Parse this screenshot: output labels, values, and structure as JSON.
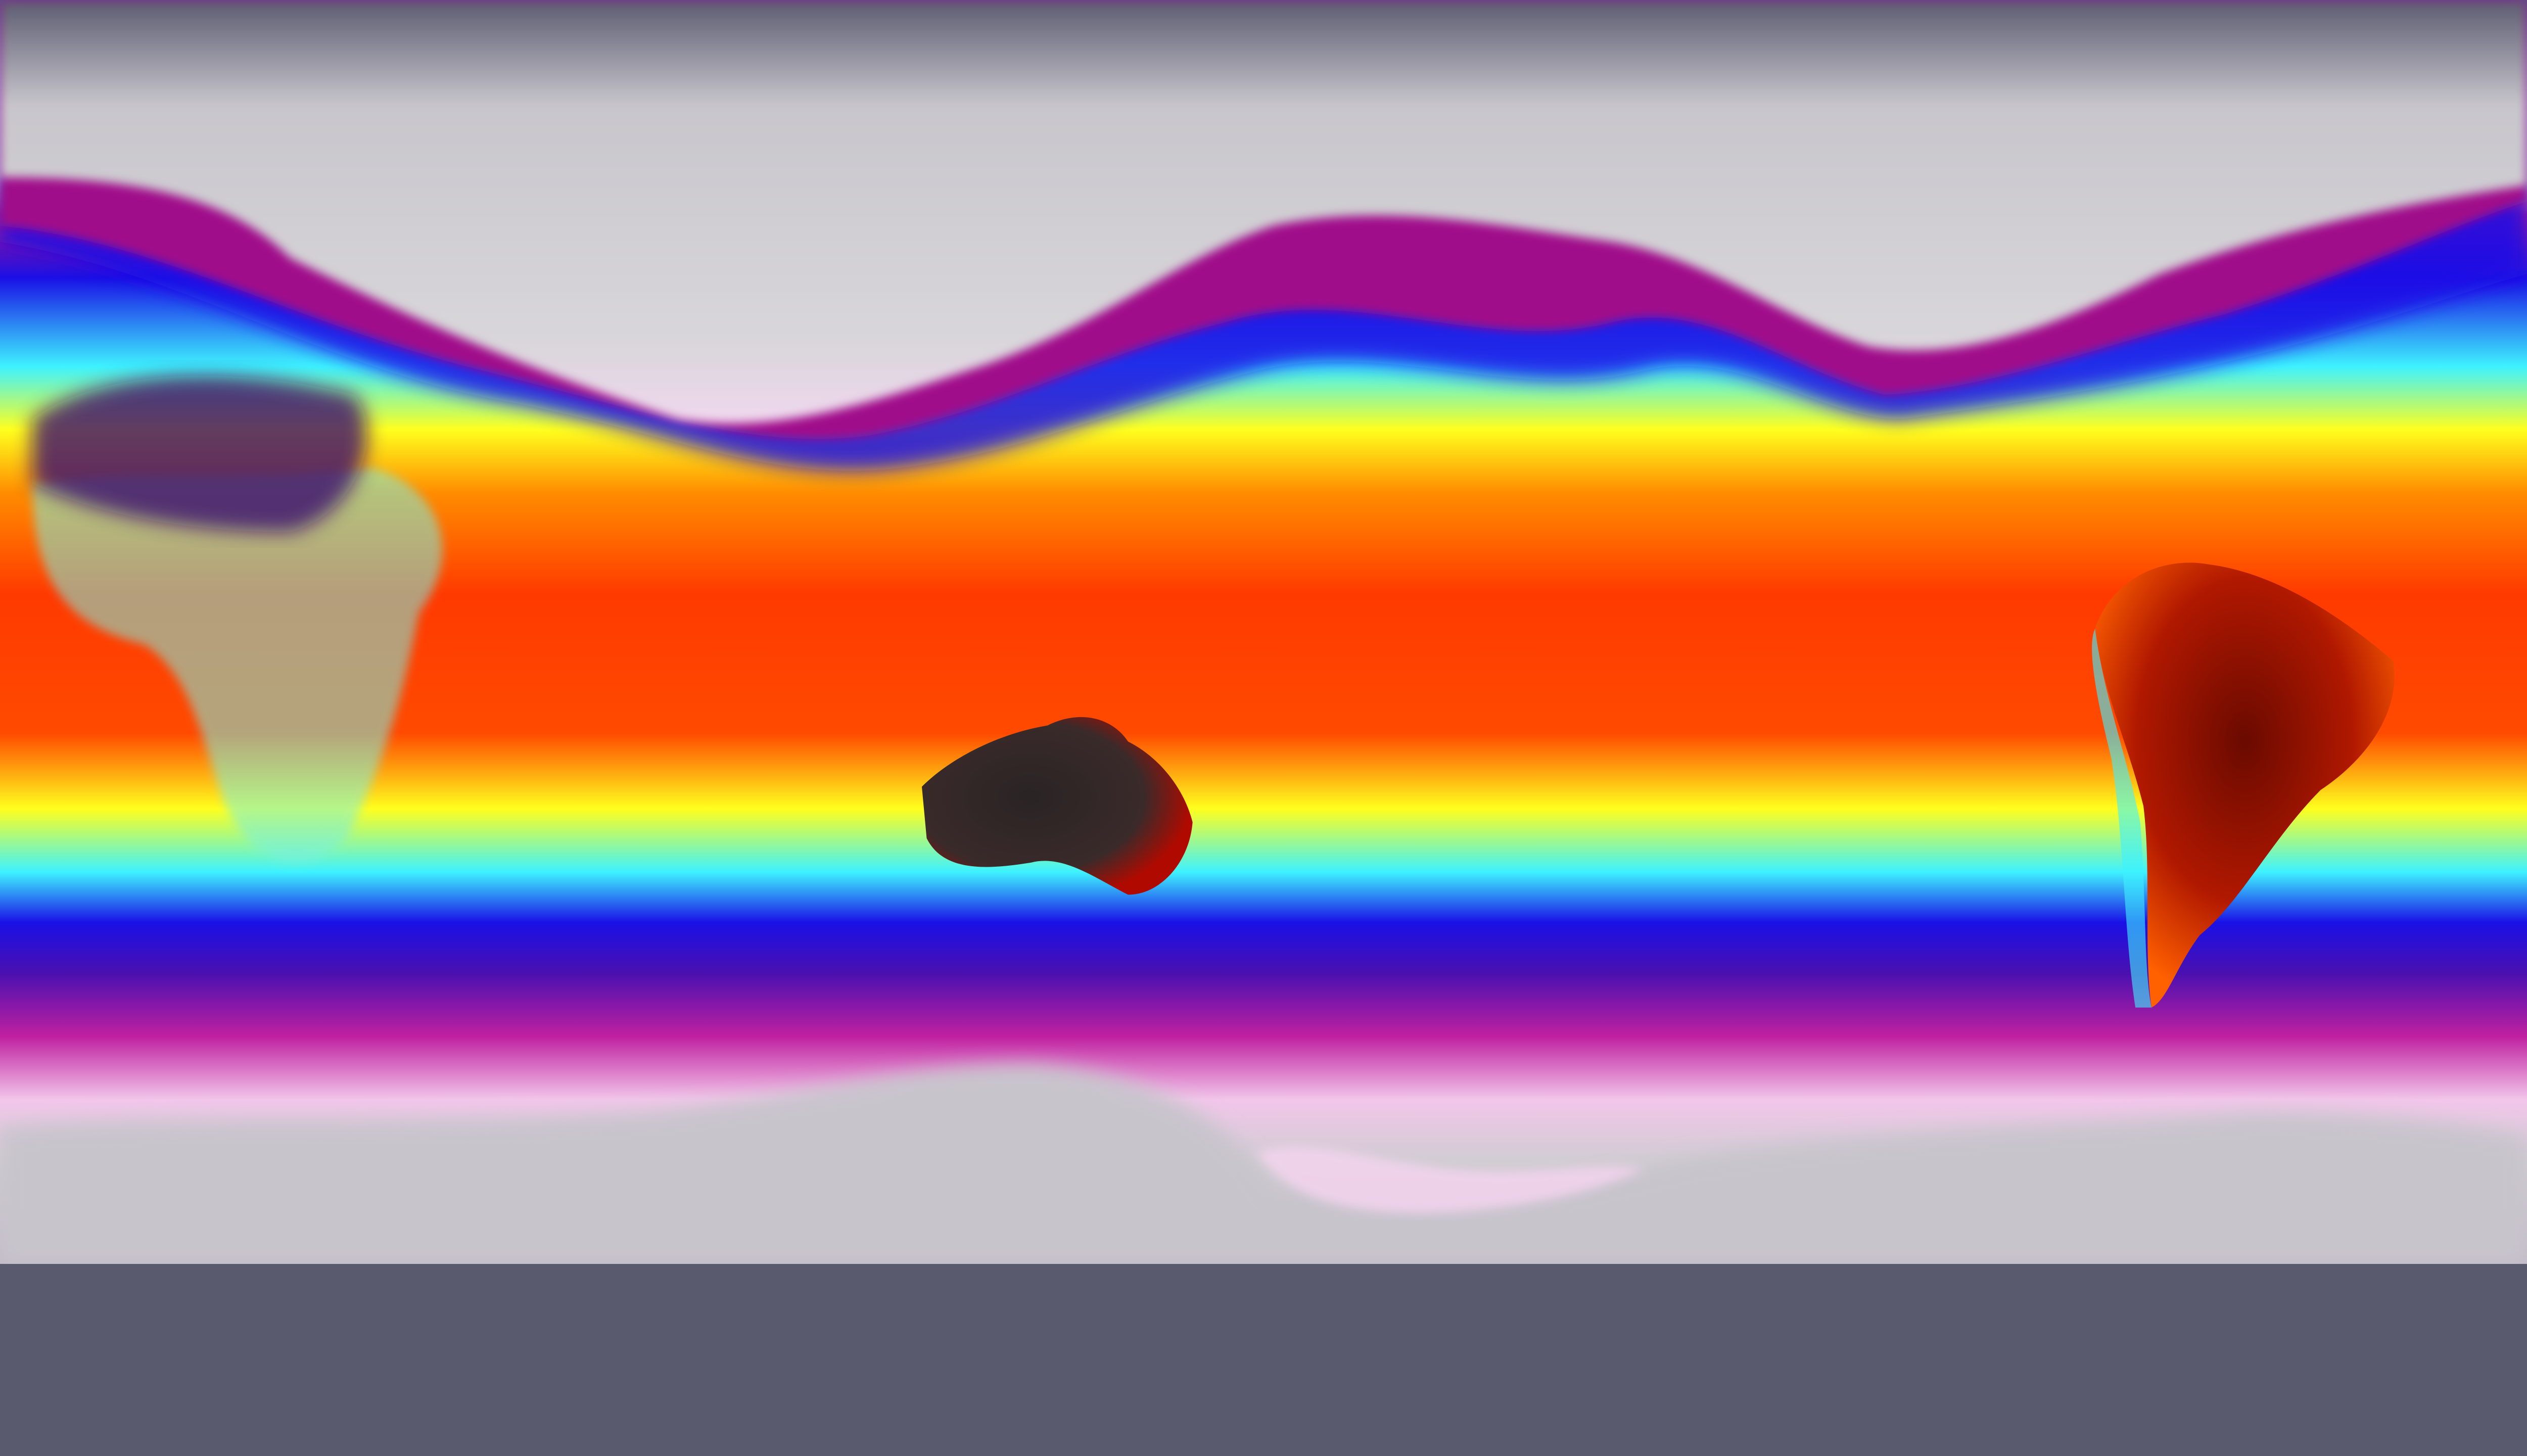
{
  "map": {
    "projection": "equirectangular",
    "colormap": {
      "polar_top": "#5c5b70",
      "cold_gray": "#d4d2d6",
      "cold_pink": "#f2c6ea",
      "magenta": "#b0148c",
      "blue": "#1a10e6",
      "cyan": "#3ef2ff",
      "yellow": "#ffff1e",
      "orange": "#ff8c00",
      "red": "#ff3a00",
      "dark_red": "#8a0a00",
      "hot_black": "#2a2424",
      "polar_bottom": "#c0bac6"
    }
  }
}
